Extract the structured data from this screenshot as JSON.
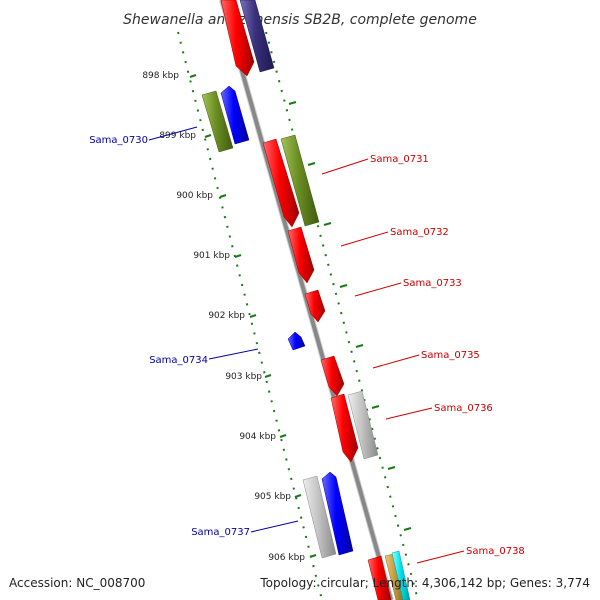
{
  "title": "Shewanella amazonensis SB2B, complete genome",
  "footer": {
    "accession": "Accession: NC_008700",
    "summary": "Topology: circular; Length: 4,306,142 bp; Genes: 3,774"
  },
  "colors": {
    "forward_label": "#cc0000",
    "reverse_label": "#0000aa",
    "backbone": "#888888",
    "ticks": "#1a7a1a",
    "red": "#ff0000",
    "blue": "#0000ff",
    "olive": "#6b8e23",
    "grey": "#bbbbbb",
    "navy": "#3a2f7a",
    "tan": "#c8a040",
    "cyan": "#00e5ee"
  },
  "ticks": [
    {
      "label": "898 kbp"
    },
    {
      "label": "899 kbp"
    },
    {
      "label": "900 kbp"
    },
    {
      "label": "901 kbp"
    },
    {
      "label": "902 kbp"
    },
    {
      "label": "903 kbp"
    },
    {
      "label": "904 kbp"
    },
    {
      "label": "905 kbp"
    },
    {
      "label": "906 kbp"
    }
  ],
  "gene_labels": {
    "forward": [
      {
        "name": "Sama_0731"
      },
      {
        "name": "Sama_0732"
      },
      {
        "name": "Sama_0733"
      },
      {
        "name": "Sama_0735"
      },
      {
        "name": "Sama_0736"
      },
      {
        "name": "Sama_0738"
      }
    ],
    "reverse": [
      {
        "name": "Sama_0730"
      },
      {
        "name": "Sama_0734"
      },
      {
        "name": "Sama_0737"
      }
    ]
  }
}
